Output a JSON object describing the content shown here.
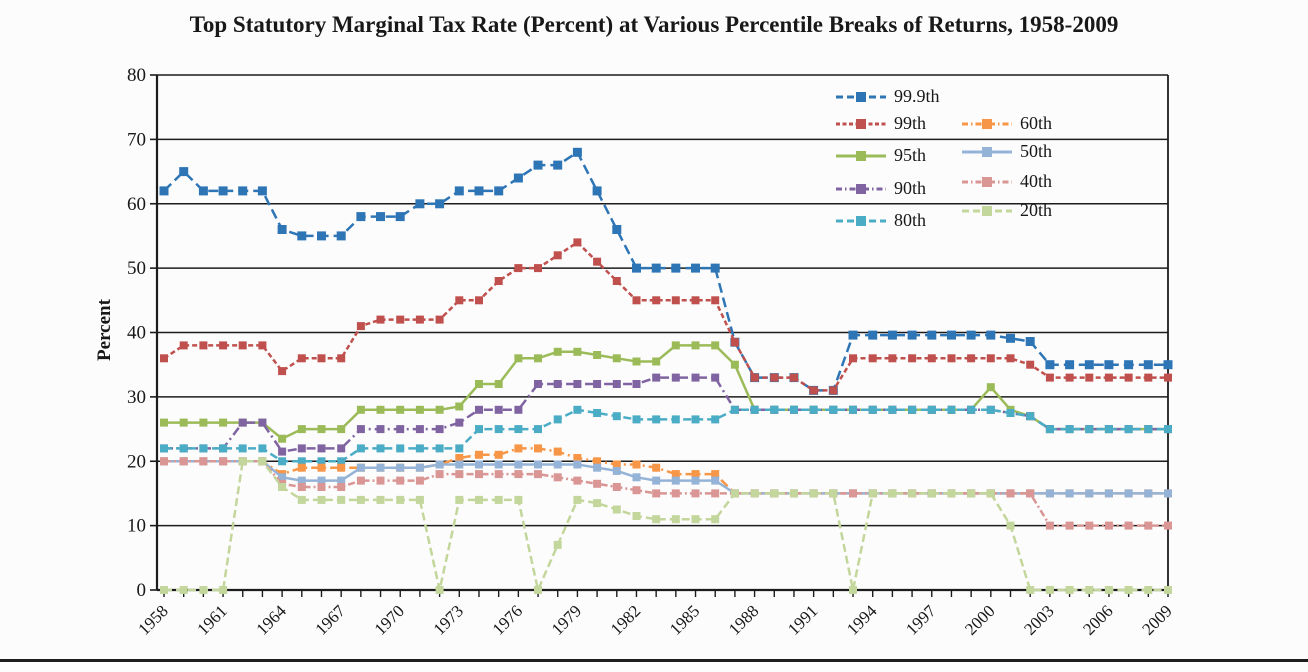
{
  "chart_data": {
    "type": "line",
    "title": "Top Statutory Marginal Tax Rate (Percent) at Various Percentile Breaks of Returns, 1958-2009",
    "ylabel": "Percent",
    "ylim": [
      0,
      80
    ],
    "yticks": [
      0,
      10,
      20,
      30,
      40,
      50,
      60,
      70,
      80
    ],
    "x_start": 1958,
    "x_end": 2009,
    "xtick_labels": [
      "1958",
      "1961",
      "1964",
      "1967",
      "1970",
      "1973",
      "1976",
      "1979",
      "1982",
      "1985",
      "1988",
      "1991",
      "1994",
      "1997",
      "2000",
      "2003",
      "2006",
      "2009"
    ],
    "grid": "horizontal-black",
    "legend_position": "inside-top-right-no-box",
    "legend_columns": [
      [
        "99.9th",
        "99th",
        "95th",
        "90th",
        "80th"
      ],
      [
        "60th",
        "50th",
        "40th",
        "20th"
      ]
    ],
    "series": [
      {
        "name": "99.9th",
        "color": "#2E75B6",
        "line_style": "dashed",
        "marker": "square",
        "values": [
          62,
          65,
          62,
          62,
          62,
          62,
          56,
          55,
          55,
          55,
          58,
          58,
          58,
          60,
          60,
          62,
          62,
          62,
          64,
          66,
          66,
          68,
          62,
          56,
          50,
          50,
          50,
          50,
          50,
          38.5,
          33,
          33,
          33,
          31,
          31,
          39.6,
          39.6,
          39.6,
          39.6,
          39.6,
          39.6,
          39.6,
          39.6,
          39.1,
          38.6,
          35,
          35,
          35,
          35,
          35,
          35,
          35
        ]
      },
      {
        "name": "99th",
        "color": "#C0504D",
        "line_style": "dashed",
        "marker": "square",
        "values": [
          36,
          38,
          38,
          38,
          38,
          38,
          34,
          36,
          36,
          36,
          41,
          42,
          42,
          42,
          42,
          45,
          45,
          48,
          50,
          50,
          52,
          54,
          51,
          48,
          45,
          45,
          45,
          45,
          45,
          38.5,
          33,
          33,
          33,
          31,
          31,
          36,
          36,
          36,
          36,
          36,
          36,
          36,
          36,
          36,
          35,
          33,
          33,
          33,
          33,
          33,
          33,
          33
        ]
      },
      {
        "name": "95th",
        "color": "#9BBB59",
        "line_style": "solid",
        "marker": "square",
        "values": [
          26,
          26,
          26,
          26,
          26,
          26,
          23.5,
          25,
          25,
          25,
          28,
          28,
          28,
          28,
          28,
          28.5,
          32,
          32,
          36,
          36,
          37,
          37,
          36.5,
          36,
          35.5,
          35.5,
          38,
          38,
          38,
          35,
          28,
          28,
          28,
          28,
          28,
          28,
          28,
          28,
          28,
          28,
          28,
          28,
          31.5,
          28,
          27,
          25,
          25,
          25,
          25,
          25,
          25,
          25
        ]
      },
      {
        "name": "90th",
        "color": "#8064A2",
        "line_style": "dash-dot",
        "marker": "square",
        "values": [
          22,
          22,
          22,
          22,
          26,
          26,
          21.5,
          22,
          22,
          22,
          25,
          25,
          25,
          25,
          25,
          26,
          28,
          28,
          28,
          32,
          32,
          32,
          32,
          32,
          32,
          33,
          33,
          33,
          33,
          28,
          28,
          28,
          28,
          28,
          28,
          28,
          28,
          28,
          28,
          28,
          28,
          28,
          28,
          27.5,
          27,
          25,
          25,
          25,
          25,
          25,
          25,
          25
        ]
      },
      {
        "name": "80th",
        "color": "#4BACC6",
        "line_style": "dashed",
        "marker": "square",
        "values": [
          22,
          22,
          22,
          22,
          22,
          22,
          20,
          20,
          20,
          20,
          22,
          22,
          22,
          22,
          22,
          22,
          25,
          25,
          25,
          25,
          26.5,
          28,
          27.5,
          27,
          26.5,
          26.5,
          26.5,
          26.5,
          26.5,
          28,
          28,
          28,
          28,
          28,
          28,
          28,
          28,
          28,
          28,
          28,
          28,
          28,
          28,
          27.5,
          27,
          25,
          25,
          25,
          25,
          25,
          25,
          25
        ]
      },
      {
        "name": "60th",
        "color": "#F79646",
        "line_style": "dash-dot",
        "marker": "square",
        "values": [
          20,
          20,
          20,
          20,
          20,
          20,
          18,
          19,
          19,
          19,
          19,
          19,
          19,
          19,
          19.5,
          20.5,
          21,
          21,
          22,
          22,
          21.5,
          20.5,
          20,
          19.5,
          19.5,
          19,
          18,
          18,
          18,
          15,
          15,
          15,
          15,
          15,
          15,
          15,
          15,
          15,
          15,
          15,
          15,
          15,
          15,
          15,
          15,
          15,
          15,
          15,
          15,
          15,
          15,
          15
        ]
      },
      {
        "name": "50th",
        "color": "#95B3D7",
        "line_style": "solid",
        "marker": "square",
        "values": [
          20,
          20,
          20,
          20,
          20,
          20,
          17.5,
          17,
          17,
          17,
          19,
          19,
          19,
          19,
          19.5,
          19.5,
          19.5,
          19.5,
          19.5,
          19.5,
          19.5,
          19.5,
          19,
          18.5,
          17.5,
          17,
          17,
          17,
          17,
          15,
          15,
          15,
          15,
          15,
          15,
          15,
          15,
          15,
          15,
          15,
          15,
          15,
          15,
          15,
          15,
          15,
          15,
          15,
          15,
          15,
          15,
          15
        ]
      },
      {
        "name": "40th",
        "color": "#D99694",
        "line_style": "dash-dot",
        "marker": "square",
        "values": [
          20,
          20,
          20,
          20,
          20,
          20,
          16.5,
          16,
          16,
          16,
          17,
          17,
          17,
          17,
          18,
          18,
          18,
          18,
          18,
          18,
          17.5,
          17,
          16.5,
          16,
          15.5,
          15,
          15,
          15,
          15,
          15,
          15,
          15,
          15,
          15,
          15,
          15,
          15,
          15,
          15,
          15,
          15,
          15,
          15,
          15,
          15,
          10,
          10,
          10,
          10,
          10,
          10,
          10
        ]
      },
      {
        "name": "20th",
        "color": "#C3D69B",
        "line_style": "dashed",
        "marker": "square",
        "values": [
          0,
          0,
          0,
          0,
          20,
          20,
          16,
          14,
          14,
          14,
          14,
          14,
          14,
          14,
          0,
          14,
          14,
          14,
          14,
          0,
          7,
          14,
          13.5,
          12.5,
          11.5,
          11,
          11,
          11,
          11,
          15,
          15,
          15,
          15,
          15,
          15,
          0,
          15,
          15,
          15,
          15,
          15,
          15,
          15,
          10,
          0,
          0,
          0,
          0,
          0,
          0,
          0,
          0
        ]
      }
    ]
  }
}
